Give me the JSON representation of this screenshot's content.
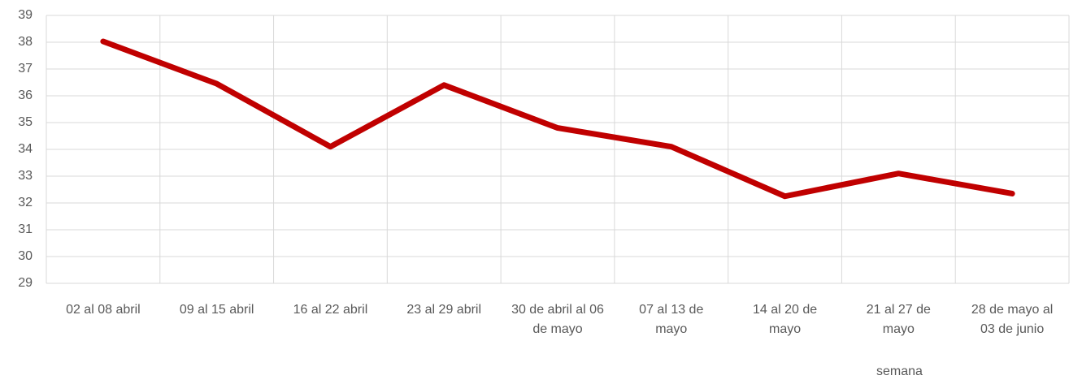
{
  "chart_data": {
    "type": "line",
    "x_label": "semana",
    "categories": [
      "02 al 08 abril",
      "09 al 15 abril",
      "16 al 22 abril",
      "23 al 29 abril",
      "30 de abril al 06 de mayo",
      "07 al 13 de mayo",
      "14 al 20 de mayo",
      "21 al 27 de mayo",
      "28 de mayo al 03 de junio"
    ],
    "values": [
      38.03,
      36.45,
      34.1,
      36.4,
      34.8,
      34.1,
      32.25,
      33.1,
      32.35
    ],
    "color": "#c00000",
    "ylim": [
      29,
      39
    ],
    "yticks": [
      29,
      30,
      31,
      32,
      33,
      34,
      35,
      36,
      37,
      38,
      39
    ],
    "grid": true
  }
}
